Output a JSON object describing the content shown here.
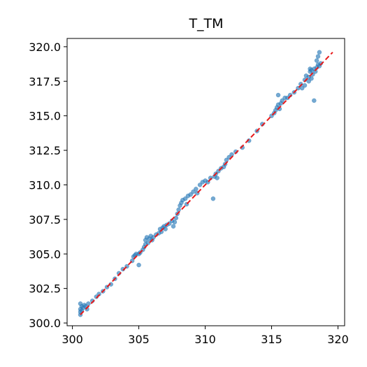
{
  "chart_data": {
    "type": "scatter",
    "title": "T_TM",
    "xlabel": "",
    "ylabel": "",
    "xlim": [
      299.6,
      320.5
    ],
    "ylim": [
      299.8,
      320.6
    ],
    "xticks": [
      300,
      305,
      310,
      315,
      320
    ],
    "xtick_labels": [
      "300",
      "305",
      "310",
      "315",
      "320"
    ],
    "yticks": [
      300.0,
      302.5,
      305.0,
      307.5,
      310.0,
      312.5,
      315.0,
      317.5,
      320.0
    ],
    "ytick_labels": [
      "300.0",
      "302.5",
      "305.0",
      "307.5",
      "310.0",
      "312.5",
      "315.0",
      "317.5",
      "320.0"
    ],
    "grid": false,
    "reference_line": {
      "x": [
        300.6,
        319.6
      ],
      "y": [
        300.6,
        319.6
      ],
      "color": "#e8191a",
      "style": "dashed"
    },
    "marker_color": "#2b7bb9",
    "series": [
      {
        "points": [
          [
            300.6,
            300.6
          ],
          [
            300.6,
            300.8
          ],
          [
            300.6,
            301.0
          ],
          [
            300.7,
            301.2
          ],
          [
            300.6,
            301.4
          ],
          [
            300.7,
            300.9
          ],
          [
            300.8,
            301.1
          ],
          [
            300.9,
            301.3
          ],
          [
            301.0,
            301.2
          ],
          [
            301.1,
            301.0
          ],
          [
            301.2,
            301.4
          ],
          [
            301.5,
            301.6
          ],
          [
            301.8,
            301.9
          ],
          [
            302.0,
            302.1
          ],
          [
            302.3,
            302.3
          ],
          [
            302.6,
            302.6
          ],
          [
            302.9,
            302.8
          ],
          [
            303.2,
            303.2
          ],
          [
            303.5,
            303.6
          ],
          [
            303.8,
            303.9
          ],
          [
            304.1,
            304.1
          ],
          [
            304.5,
            304.5
          ],
          [
            304.6,
            304.8
          ],
          [
            304.7,
            304.9
          ],
          [
            304.8,
            305.0
          ],
          [
            305.0,
            304.2
          ],
          [
            305.0,
            305.0
          ],
          [
            305.1,
            305.1
          ],
          [
            305.3,
            305.3
          ],
          [
            305.4,
            305.5
          ],
          [
            305.5,
            305.7
          ],
          [
            305.5,
            306.0
          ],
          [
            305.6,
            306.2
          ],
          [
            305.7,
            305.8
          ],
          [
            305.8,
            306.1
          ],
          [
            305.9,
            306.3
          ],
          [
            306.0,
            306.0
          ],
          [
            306.1,
            306.2
          ],
          [
            306.3,
            306.4
          ],
          [
            306.5,
            306.5
          ],
          [
            306.6,
            306.8
          ],
          [
            306.7,
            306.6
          ],
          [
            306.8,
            306.9
          ],
          [
            306.9,
            307.0
          ],
          [
            307.0,
            306.8
          ],
          [
            307.1,
            307.1
          ],
          [
            307.3,
            307.2
          ],
          [
            307.5,
            307.4
          ],
          [
            307.6,
            307.0
          ],
          [
            307.7,
            307.3
          ],
          [
            307.8,
            307.6
          ],
          [
            307.9,
            307.9
          ],
          [
            308.0,
            308.2
          ],
          [
            308.1,
            308.5
          ],
          [
            308.2,
            308.7
          ],
          [
            308.3,
            308.9
          ],
          [
            308.5,
            309.0
          ],
          [
            308.6,
            308.6
          ],
          [
            308.7,
            309.2
          ],
          [
            308.9,
            309.3
          ],
          [
            309.1,
            309.5
          ],
          [
            309.3,
            309.7
          ],
          [
            309.4,
            309.4
          ],
          [
            309.6,
            310.0
          ],
          [
            309.8,
            310.2
          ],
          [
            310.0,
            310.3
          ],
          [
            310.2,
            310.2
          ],
          [
            310.4,
            310.5
          ],
          [
            310.6,
            309.0
          ],
          [
            310.7,
            310.6
          ],
          [
            310.8,
            310.8
          ],
          [
            310.9,
            310.5
          ],
          [
            311.0,
            311.0
          ],
          [
            311.2,
            311.2
          ],
          [
            311.4,
            311.3
          ],
          [
            311.5,
            311.5
          ],
          [
            311.6,
            311.8
          ],
          [
            311.8,
            312.0
          ],
          [
            312.0,
            312.2
          ],
          [
            312.3,
            312.4
          ],
          [
            312.8,
            312.7
          ],
          [
            313.3,
            313.2
          ],
          [
            313.9,
            313.9
          ],
          [
            314.3,
            314.4
          ],
          [
            315.0,
            315.0
          ],
          [
            315.2,
            315.2
          ],
          [
            315.3,
            315.4
          ],
          [
            315.4,
            315.6
          ],
          [
            315.5,
            315.8
          ],
          [
            315.6,
            315.5
          ],
          [
            315.7,
            315.9
          ],
          [
            315.5,
            316.5
          ],
          [
            315.8,
            316.1
          ],
          [
            316.0,
            316.3
          ],
          [
            316.2,
            316.3
          ],
          [
            316.4,
            316.5
          ],
          [
            316.7,
            316.7
          ],
          [
            317.0,
            317.0
          ],
          [
            317.2,
            317.3
          ],
          [
            317.5,
            317.6
          ],
          [
            317.6,
            317.9
          ],
          [
            317.8,
            317.8
          ],
          [
            317.9,
            318.2
          ],
          [
            318.0,
            318.3
          ],
          [
            318.1,
            318.0
          ],
          [
            318.2,
            318.4
          ],
          [
            318.2,
            316.1
          ],
          [
            318.3,
            318.2
          ],
          [
            318.4,
            318.5
          ],
          [
            318.5,
            318.7
          ],
          [
            318.6,
            318.6
          ],
          [
            318.7,
            318.8
          ],
          [
            318.6,
            319.6
          ],
          [
            318.5,
            319.3
          ],
          [
            318.4,
            319.0
          ],
          [
            317.8,
            317.5
          ],
          [
            317.9,
            318.4
          ],
          [
            318.0,
            317.7
          ],
          [
            317.5,
            317.2
          ],
          [
            317.3,
            317.0
          ]
        ]
      }
    ]
  }
}
